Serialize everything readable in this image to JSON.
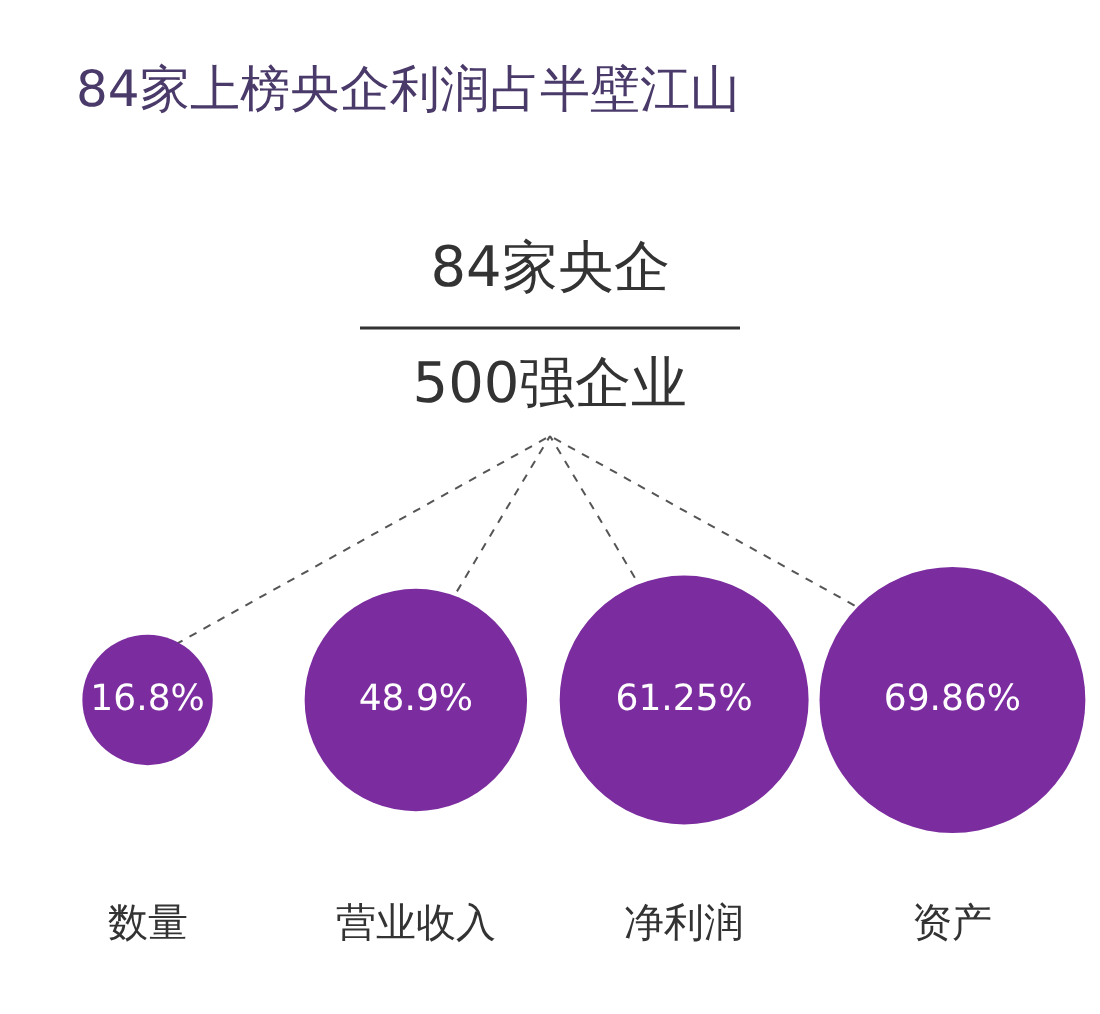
{
  "chart_data": {
    "type": "other",
    "title": "84家上榜央企利润占半壁江山",
    "annotations": [
      "84家央企",
      "500强企业"
    ],
    "categories": [
      "数量",
      "营业收入",
      "净利润",
      "资产"
    ],
    "values": [
      16.8,
      48.9,
      61.25,
      69.86
    ],
    "value_labels": [
      "16.8%",
      "48.9%",
      "61.25%",
      "69.86%"
    ],
    "color": "#7b2d9f"
  }
}
